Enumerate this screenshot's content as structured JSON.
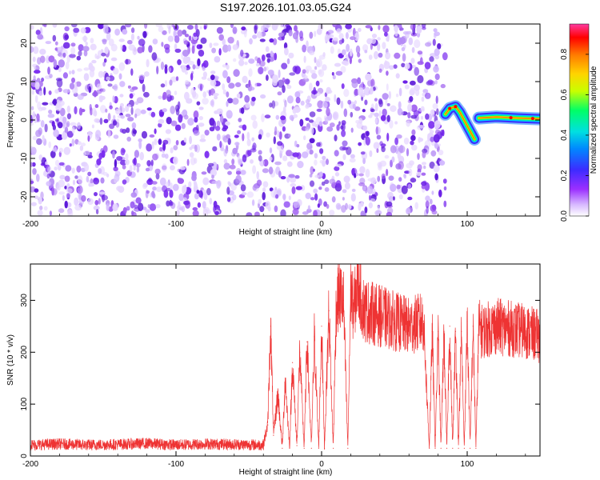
{
  "title": "S197.2026.101.03.05.G24",
  "colors": {
    "snr_line": "#ee3333",
    "spectrogram_noise": "#7a2cf0",
    "colormap": [
      "#ffffff",
      "#9b2fff",
      "#3d2bff",
      "#00c8ff",
      "#00ff66",
      "#c8ff00",
      "#ffd400",
      "#ff7a00",
      "#ff0000"
    ]
  },
  "chart_data": [
    {
      "type": "heatmap",
      "xlabel": "Height of straight line (km)",
      "ylabel": "Frequency (Hz)",
      "xlim": [
        -200,
        150
      ],
      "ylim": [
        -25,
        25
      ],
      "xticks": [
        "-200",
        "-100",
        "0",
        "100"
      ],
      "yticks": [
        "-20",
        "-10",
        "0",
        "10",
        "20"
      ],
      "xtick_values": [
        -200,
        -100,
        0,
        100
      ],
      "ytick_values": [
        -20,
        -10,
        0,
        10,
        20
      ],
      "regions": [
        {
          "x": [
            -200,
            85
          ],
          "content": "noise"
        },
        {
          "x": [
            85,
            150
          ],
          "content": "signal"
        }
      ],
      "signal_ridge": [
        {
          "x": 85,
          "y": 1.5
        },
        {
          "x": 88,
          "y": 3
        },
        {
          "x": 92,
          "y": 3.5
        },
        {
          "x": 95,
          "y": 2
        },
        {
          "x": 100,
          "y": -1.5
        },
        {
          "x": 105,
          "y": -5
        },
        {
          "x": 108,
          "y": 0.5
        },
        {
          "x": 120,
          "y": 0.8
        },
        {
          "x": 135,
          "y": 0.5
        },
        {
          "x": 150,
          "y": 0.3
        }
      ],
      "colorbar": {
        "label": "Normalized spectral amplitude",
        "range": [
          0,
          0.95
        ],
        "ticks": [
          "0.0",
          "0.2",
          "0.4",
          "0.6",
          "0.8"
        ],
        "tick_values": [
          0,
          0.2,
          0.4,
          0.6,
          0.8
        ]
      }
    },
    {
      "type": "line",
      "xlabel": "Height of straight line (km)",
      "ylabel": "SNR (10 * v/v)",
      "xlim": [
        -200,
        150
      ],
      "ylim": [
        0,
        370
      ],
      "xticks": [
        "-200",
        "-100",
        "0",
        "100"
      ],
      "yticks": [
        "0",
        "100",
        "200",
        "300"
      ],
      "xtick_values": [
        -200,
        -100,
        0,
        100
      ],
      "ytick_values": [
        0,
        100,
        200,
        300
      ],
      "series": [
        {
          "x": [
            -200,
            -180,
            -160,
            -140,
            -120,
            -100,
            -80,
            -60,
            -40,
            -37,
            -35,
            -33,
            -30,
            -27,
            -25,
            -22,
            -20,
            -17,
            -15,
            -12,
            -10,
            -7,
            -5,
            -2,
            0,
            2,
            5,
            8,
            10,
            12,
            15,
            18,
            20,
            22,
            25,
            28,
            30,
            40,
            50,
            60,
            70,
            74,
            76,
            78,
            80,
            82,
            84,
            86,
            88,
            90,
            92,
            94,
            96,
            98,
            100,
            102,
            104,
            106,
            108,
            110,
            120,
            130,
            140,
            150
          ],
          "y": [
            18,
            20,
            18,
            19,
            21,
            18,
            20,
            19,
            18,
            60,
            250,
            40,
            120,
            15,
            150,
            15,
            180,
            20,
            200,
            15,
            220,
            15,
            230,
            15,
            250,
            15,
            280,
            15,
            290,
            310,
            300,
            15,
            320,
            280,
            340,
            290,
            280,
            270,
            260,
            250,
            260,
            15,
            240,
            15,
            240,
            15,
            240,
            15,
            250,
            15,
            240,
            15,
            240,
            15,
            260,
            15,
            250,
            15,
            250,
            240,
            250,
            245,
            240,
            230
          ]
        }
      ]
    }
  ]
}
